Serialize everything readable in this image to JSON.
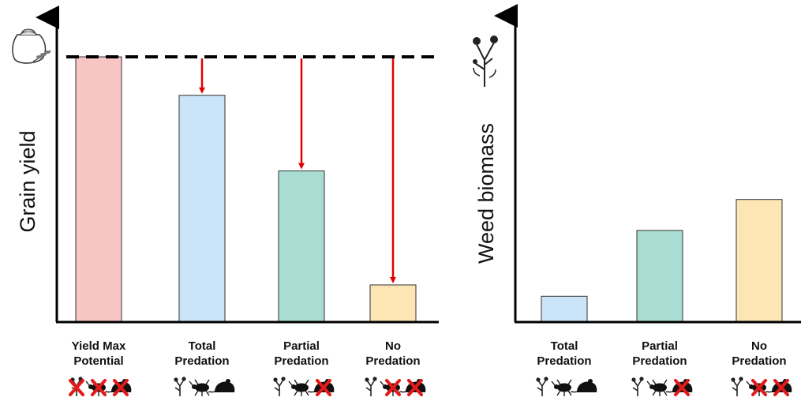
{
  "chart_data": [
    {
      "type": "bar",
      "ylabel": "Grain yield",
      "categories": [
        "Yield Max\nPotential",
        "Total\nPredation",
        "Partial\nPredation",
        "No\nPredation"
      ],
      "values": [
        100,
        85.5,
        57,
        14
      ],
      "ylim": [
        0,
        100
      ],
      "colors": [
        "#f7c6c4",
        "#cce4f7",
        "#a9dcd2",
        "#fde5b4"
      ],
      "reference_line": {
        "value": 100,
        "style": "dashed",
        "color": "#000000"
      },
      "loss_arrows": {
        "color": "#e00000",
        "from": 100,
        "categories": [
          1,
          2,
          3
        ]
      },
      "icons_below": [
        [
          "weed-crossed-icon",
          "beetle-crossed-icon",
          "rodent-crossed-icon"
        ],
        [
          "weed-icon",
          "beetle-icon",
          "rodent-icon"
        ],
        [
          "weed-icon",
          "beetle-icon",
          "rodent-crossed-icon"
        ],
        [
          "weed-icon",
          "beetle-crossed-icon",
          "rodent-crossed-icon"
        ]
      ],
      "axis_icon": "grain-sack-icon",
      "grid": false
    },
    {
      "type": "bar",
      "ylabel": "Weed biomass",
      "categories": [
        "Total\nPredation",
        "Partial\nPredation",
        "No\nPredation"
      ],
      "values": [
        10,
        35.5,
        47.5
      ],
      "ylim": [
        0,
        115
      ],
      "colors": [
        "#cce4f7",
        "#a9dcd2",
        "#fde5b4"
      ],
      "icons_below": [
        [
          "weed-icon",
          "beetle-icon",
          "rodent-icon"
        ],
        [
          "weed-icon",
          "beetle-icon",
          "rodent-crossed-icon"
        ],
        [
          "weed-icon",
          "beetle-crossed-icon",
          "rodent-crossed-icon"
        ]
      ],
      "axis_icon": "weed-plant-icon",
      "grid": false
    }
  ]
}
